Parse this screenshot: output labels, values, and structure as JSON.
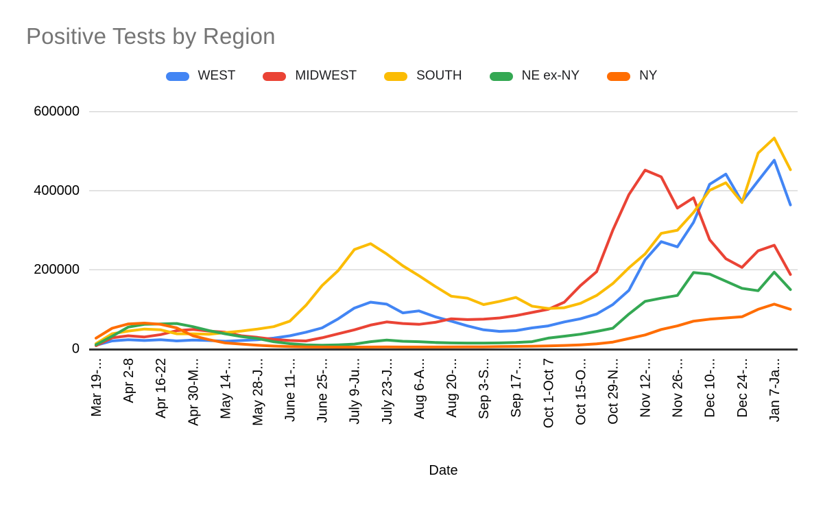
{
  "title": "Positive Tests by Region",
  "axis": {
    "x_label": "Date",
    "y_ticks": [
      "0",
      "200000",
      "400000",
      "600000"
    ]
  },
  "chart_data": {
    "type": "line",
    "title": "Positive Tests by Region",
    "xlabel": "Date",
    "ylabel": "",
    "ylim": [
      0,
      600000
    ],
    "y_tick_interval": 200000,
    "grid": "horizontal",
    "legend_position": "top",
    "x_note": "weekly data points; every second point carries a tick label",
    "x_tick_labels": [
      "Mar 19-...",
      "Apr 2-8",
      "Apr 16-22",
      "Apr 30-M...",
      "May 14-...",
      "May 28-J...",
      "June 11-...",
      "June 25-...",
      "July 9-Ju...",
      "July 23-J...",
      "Aug 6-A...",
      "Aug 20-...",
      "Sep 3-S...",
      "Sep 17-...",
      "Oct 1-Oct 7",
      "Oct 15-O...",
      "Oct 29-N...",
      "Nov 12-...",
      "Nov 26-...",
      "Dec 10-...",
      "Dec 24-...",
      "Jan 7-Ja..."
    ],
    "series": [
      {
        "name": "WEST",
        "color": "#4285F4",
        "values": [
          9000,
          20000,
          23000,
          21000,
          23000,
          20000,
          22000,
          21000,
          19000,
          21000,
          23000,
          27000,
          33000,
          42000,
          53000,
          76000,
          103000,
          118000,
          113000,
          91000,
          96000,
          81000,
          70000,
          58000,
          48000,
          44000,
          46000,
          53000,
          58000,
          68000,
          76000,
          88000,
          112000,
          148000,
          225000,
          271000,
          258000,
          320000,
          416000,
          442000,
          372000,
          425000,
          477000,
          364000
        ]
      },
      {
        "name": "MIDWEST",
        "color": "#EA4335",
        "values": [
          8000,
          28000,
          33000,
          30000,
          36000,
          46000,
          49000,
          45000,
          42000,
          33000,
          29000,
          24000,
          21000,
          20000,
          28000,
          38000,
          48000,
          60000,
          68000,
          64000,
          62000,
          67000,
          76000,
          74000,
          75000,
          78000,
          84000,
          92000,
          100000,
          118000,
          160000,
          195000,
          300000,
          390000,
          452000,
          435000,
          356000,
          382000,
          276000,
          228000,
          206000,
          248000,
          262000,
          188000
        ]
      },
      {
        "name": "SOUTH",
        "color": "#FBBC04",
        "values": [
          13000,
          38000,
          45000,
          50000,
          48000,
          38000,
          38000,
          37000,
          41000,
          45000,
          50000,
          56000,
          70000,
          110000,
          160000,
          198000,
          251000,
          266000,
          240000,
          210000,
          185000,
          158000,
          133000,
          128000,
          112000,
          120000,
          130000,
          108000,
          102000,
          104000,
          115000,
          135000,
          165000,
          205000,
          240000,
          292000,
          300000,
          345000,
          401000,
          420000,
          370000,
          495000,
          533000,
          453000
        ]
      },
      {
        "name": "NE ex-NY",
        "color": "#34A853",
        "values": [
          10000,
          32000,
          55000,
          62000,
          63000,
          64000,
          56000,
          46000,
          38000,
          31000,
          26000,
          18000,
          13000,
          10000,
          9000,
          10000,
          12000,
          18000,
          22000,
          19000,
          18000,
          16000,
          15000,
          14500,
          14500,
          15000,
          16000,
          18000,
          27000,
          32000,
          37000,
          44000,
          52000,
          88000,
          120000,
          128000,
          135000,
          193000,
          189000,
          171000,
          153000,
          147000,
          194000,
          150000
        ]
      },
      {
        "name": "NY",
        "color": "#FF6D01",
        "values": [
          27000,
          52000,
          63000,
          65000,
          62000,
          53000,
          33000,
          23000,
          15000,
          12000,
          9000,
          7000,
          5500,
          4800,
          4500,
          4300,
          4300,
          4500,
          4700,
          4500,
          4500,
          4500,
          4700,
          5000,
          5000,
          5500,
          6000,
          6500,
          7500,
          8500,
          10000,
          12500,
          17000,
          26000,
          35000,
          49000,
          58000,
          70000,
          75000,
          78000,
          81000,
          100000,
          113000,
          100000
        ]
      }
    ],
    "style": {
      "line_width": 4,
      "gridline_color": "#d9d9d9",
      "baseline_color": "#333333",
      "tick_label_color": "#000000",
      "title_color": "#757575"
    }
  }
}
